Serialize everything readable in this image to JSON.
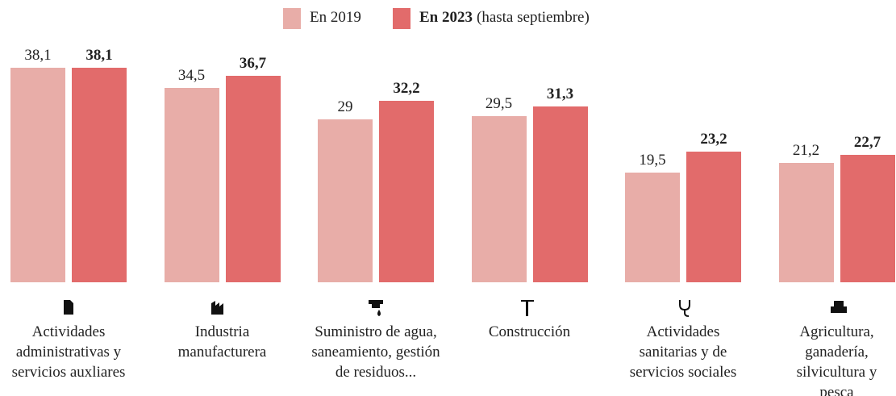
{
  "chart_data": {
    "type": "bar",
    "categories": [
      "Actividades administrativas y servicios auxliares",
      "Industria manufacturera",
      "Suministro de agua, saneamiento, gestión de residuos...",
      "Construcción",
      "Actividades sanitarias y de servicios sociales",
      "Agricultura, ganadería, silvicultura y pesca"
    ],
    "series": [
      {
        "name": "En 2019",
        "color": "#e8ada8",
        "values": [
          38.1,
          34.5,
          29,
          29.5,
          19.5,
          21.2
        ],
        "value_labels": [
          "38,1",
          "34,5",
          "29",
          "29,5",
          "19,5",
          "21,2"
        ]
      },
      {
        "name": "En 2023",
        "name_note": "(hasta septiembre)",
        "color": "#e26b6b",
        "values": [
          38.1,
          36.7,
          32.2,
          31.3,
          23.2,
          22.7
        ],
        "value_labels": [
          "38,1",
          "36,7",
          "32,2",
          "31,3",
          "23,2",
          "22,7"
        ]
      }
    ],
    "ylim": [
      0,
      40
    ]
  }
}
